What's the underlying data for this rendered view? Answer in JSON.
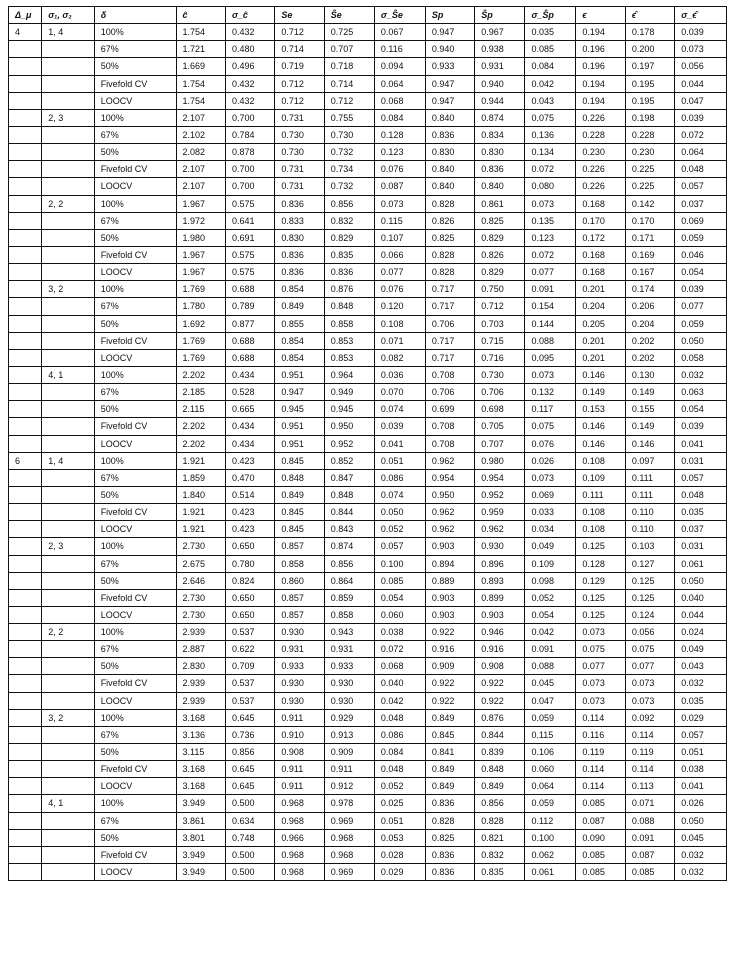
{
  "table": {
    "type": "table",
    "background_color": "#ffffff",
    "grid_color": "#111111",
    "font_family": "Arial",
    "font_size_pt": 7,
    "header_font_weight": "700",
    "columns": [
      {
        "label": "Δ_μ",
        "italic": true
      },
      {
        "label": "σ₁, σ₂",
        "italic": true
      },
      {
        "label": "δ",
        "italic": true
      },
      {
        "label": "ĉ",
        "italic": true
      },
      {
        "label": "σ_ĉ",
        "italic": true
      },
      {
        "label": "Se",
        "italic": true
      },
      {
        "label": "Ŝe",
        "italic": true,
        "hat": true
      },
      {
        "label": "σ_Ŝe",
        "italic": true
      },
      {
        "label": "Sp",
        "italic": true
      },
      {
        "label": "Ŝp",
        "italic": true,
        "hat": true
      },
      {
        "label": "σ_Ŝp",
        "italic": true
      },
      {
        "label": "ϵ",
        "italic": true
      },
      {
        "label": "ϵ̂",
        "italic": true
      },
      {
        "label": "σ_ϵ̂",
        "italic": true
      }
    ],
    "column_widths_pct": [
      4.3,
      6.8,
      10.6,
      6.4,
      6.4,
      6.4,
      6.5,
      6.6,
      6.4,
      6.5,
      6.6,
      6.4,
      6.4,
      6.7
    ],
    "rows": [
      [
        "4",
        "1, 4",
        "100%",
        "1.754",
        "0.432",
        "0.712",
        "0.725",
        "0.067",
        "0.947",
        "0.967",
        "0.035",
        "0.194",
        "0.178",
        "0.039"
      ],
      [
        "",
        "",
        "67%",
        "1.721",
        "0.480",
        "0.714",
        "0.707",
        "0.116",
        "0.940",
        "0.938",
        "0.085",
        "0.196",
        "0.200",
        "0.073"
      ],
      [
        "",
        "",
        "50%",
        "1.669",
        "0.496",
        "0.719",
        "0.718",
        "0.094",
        "0.933",
        "0.931",
        "0.084",
        "0.196",
        "0.197",
        "0.056"
      ],
      [
        "",
        "",
        "Fivefold CV",
        "1.754",
        "0.432",
        "0.712",
        "0.714",
        "0.064",
        "0.947",
        "0.940",
        "0.042",
        "0.194",
        "0.195",
        "0.044"
      ],
      [
        "",
        "",
        "LOOCV",
        "1.754",
        "0.432",
        "0.712",
        "0.712",
        "0.068",
        "0.947",
        "0.944",
        "0.043",
        "0.194",
        "0.195",
        "0.047"
      ],
      [
        "",
        "2, 3",
        "100%",
        "2.107",
        "0.700",
        "0.731",
        "0.755",
        "0.084",
        "0.840",
        "0.874",
        "0.075",
        "0.226",
        "0.198",
        "0.039"
      ],
      [
        "",
        "",
        "67%",
        "2.102",
        "0.784",
        "0.730",
        "0.730",
        "0.128",
        "0.836",
        "0.834",
        "0.136",
        "0.228",
        "0.228",
        "0.072"
      ],
      [
        "",
        "",
        "50%",
        "2.082",
        "0.878",
        "0.730",
        "0.732",
        "0.123",
        "0.830",
        "0.830",
        "0.134",
        "0.230",
        "0.230",
        "0.064"
      ],
      [
        "",
        "",
        "Fivefold CV",
        "2.107",
        "0.700",
        "0.731",
        "0.734",
        "0.076",
        "0.840",
        "0.836",
        "0.072",
        "0.226",
        "0.225",
        "0.048"
      ],
      [
        "",
        "",
        "LOOCV",
        "2.107",
        "0.700",
        "0.731",
        "0.732",
        "0.087",
        "0.840",
        "0.840",
        "0.080",
        "0.226",
        "0.225",
        "0.057"
      ],
      [
        "",
        "2, 2",
        "100%",
        "1.967",
        "0.575",
        "0.836",
        "0.856",
        "0.073",
        "0.828",
        "0.861",
        "0.073",
        "0.168",
        "0.142",
        "0.037"
      ],
      [
        "",
        "",
        "67%",
        "1.972",
        "0.641",
        "0.833",
        "0.832",
        "0.115",
        "0.826",
        "0.825",
        "0.135",
        "0.170",
        "0.170",
        "0.069"
      ],
      [
        "",
        "",
        "50%",
        "1.980",
        "0.691",
        "0.830",
        "0.829",
        "0.107",
        "0.825",
        "0.829",
        "0.123",
        "0.172",
        "0.171",
        "0.059"
      ],
      [
        "",
        "",
        "Fivefold CV",
        "1.967",
        "0.575",
        "0.836",
        "0.835",
        "0.066",
        "0.828",
        "0.826",
        "0.072",
        "0.168",
        "0.169",
        "0.046"
      ],
      [
        "",
        "",
        "LOOCV",
        "1.967",
        "0.575",
        "0.836",
        "0.836",
        "0.077",
        "0.828",
        "0.829",
        "0.077",
        "0.168",
        "0.167",
        "0.054"
      ],
      [
        "",
        "3, 2",
        "100%",
        "1.769",
        "0.688",
        "0.854",
        "0.876",
        "0.076",
        "0.717",
        "0.750",
        "0.091",
        "0.201",
        "0.174",
        "0.039"
      ],
      [
        "",
        "",
        "67%",
        "1.780",
        "0.789",
        "0.849",
        "0.848",
        "0.120",
        "0.717",
        "0.712",
        "0.154",
        "0.204",
        "0.206",
        "0.077"
      ],
      [
        "",
        "",
        "50%",
        "1.692",
        "0.877",
        "0.855",
        "0.858",
        "0.108",
        "0.706",
        "0.703",
        "0.144",
        "0.205",
        "0.204",
        "0.059"
      ],
      [
        "",
        "",
        "Fivefold CV",
        "1.769",
        "0.688",
        "0.854",
        "0.853",
        "0.071",
        "0.717",
        "0.715",
        "0.088",
        "0.201",
        "0.202",
        "0.050"
      ],
      [
        "",
        "",
        "LOOCV",
        "1.769",
        "0.688",
        "0.854",
        "0.853",
        "0.082",
        "0.717",
        "0.716",
        "0.095",
        "0.201",
        "0.202",
        "0.058"
      ],
      [
        "",
        "4, 1",
        "100%",
        "2.202",
        "0.434",
        "0.951",
        "0.964",
        "0.036",
        "0.708",
        "0.730",
        "0.073",
        "0.146",
        "0.130",
        "0.032"
      ],
      [
        "",
        "",
        "67%",
        "2.185",
        "0.528",
        "0.947",
        "0.949",
        "0.070",
        "0.706",
        "0.706",
        "0.132",
        "0.149",
        "0.149",
        "0.063"
      ],
      [
        "",
        "",
        "50%",
        "2.115",
        "0.665",
        "0.945",
        "0.945",
        "0.074",
        "0.699",
        "0.698",
        "0.117",
        "0.153",
        "0.155",
        "0.054"
      ],
      [
        "",
        "",
        "Fivefold CV",
        "2.202",
        "0.434",
        "0.951",
        "0.950",
        "0.039",
        "0.708",
        "0.705",
        "0.075",
        "0.146",
        "0.149",
        "0.039"
      ],
      [
        "",
        "",
        "LOOCV",
        "2.202",
        "0.434",
        "0.951",
        "0.952",
        "0.041",
        "0.708",
        "0.707",
        "0.076",
        "0.146",
        "0.146",
        "0.041"
      ],
      [
        "6",
        "1, 4",
        "100%",
        "1.921",
        "0.423",
        "0.845",
        "0.852",
        "0.051",
        "0.962",
        "0.980",
        "0.026",
        "0.108",
        "0.097",
        "0.031"
      ],
      [
        "",
        "",
        "67%",
        "1.859",
        "0.470",
        "0.848",
        "0.847",
        "0.086",
        "0.954",
        "0.954",
        "0.073",
        "0.109",
        "0.111",
        "0.057"
      ],
      [
        "",
        "",
        "50%",
        "1.840",
        "0.514",
        "0.849",
        "0.848",
        "0.074",
        "0.950",
        "0.952",
        "0.069",
        "0.111",
        "0.111",
        "0.048"
      ],
      [
        "",
        "",
        "Fivefold CV",
        "1.921",
        "0.423",
        "0.845",
        "0.844",
        "0.050",
        "0.962",
        "0.959",
        "0.033",
        "0.108",
        "0.110",
        "0.035"
      ],
      [
        "",
        "",
        "LOOCV",
        "1.921",
        "0.423",
        "0.845",
        "0.843",
        "0.052",
        "0.962",
        "0.962",
        "0.034",
        "0.108",
        "0.110",
        "0.037"
      ],
      [
        "",
        "2, 3",
        "100%",
        "2.730",
        "0.650",
        "0.857",
        "0.874",
        "0.057",
        "0.903",
        "0.930",
        "0.049",
        "0.125",
        "0.103",
        "0.031"
      ],
      [
        "",
        "",
        "67%",
        "2.675",
        "0.780",
        "0.858",
        "0.856",
        "0.100",
        "0.894",
        "0.896",
        "0.109",
        "0.128",
        "0.127",
        "0.061"
      ],
      [
        "",
        "",
        "50%",
        "2.646",
        "0.824",
        "0.860",
        "0.864",
        "0.085",
        "0.889",
        "0.893",
        "0.098",
        "0.129",
        "0.125",
        "0.050"
      ],
      [
        "",
        "",
        "Fivefold CV",
        "2.730",
        "0.650",
        "0.857",
        "0.859",
        "0.054",
        "0.903",
        "0.899",
        "0.052",
        "0.125",
        "0.125",
        "0.040"
      ],
      [
        "",
        "",
        "LOOCV",
        "2.730",
        "0.650",
        "0.857",
        "0.858",
        "0.060",
        "0.903",
        "0.903",
        "0.054",
        "0.125",
        "0.124",
        "0.044"
      ],
      [
        "",
        "2, 2",
        "100%",
        "2.939",
        "0.537",
        "0.930",
        "0.943",
        "0.038",
        "0.922",
        "0.946",
        "0.042",
        "0.073",
        "0.056",
        "0.024"
      ],
      [
        "",
        "",
        "67%",
        "2.887",
        "0.622",
        "0.931",
        "0.931",
        "0.072",
        "0.916",
        "0.916",
        "0.091",
        "0.075",
        "0.075",
        "0.049"
      ],
      [
        "",
        "",
        "50%",
        "2.830",
        "0.709",
        "0.933",
        "0.933",
        "0.068",
        "0.909",
        "0.908",
        "0.088",
        "0.077",
        "0.077",
        "0.043"
      ],
      [
        "",
        "",
        "Fivefold CV",
        "2.939",
        "0.537",
        "0.930",
        "0.930",
        "0.040",
        "0.922",
        "0.922",
        "0.045",
        "0.073",
        "0.073",
        "0.032"
      ],
      [
        "",
        "",
        "LOOCV",
        "2.939",
        "0.537",
        "0.930",
        "0.930",
        "0.042",
        "0.922",
        "0.922",
        "0.047",
        "0.073",
        "0.073",
        "0.035"
      ],
      [
        "",
        "3, 2",
        "100%",
        "3.168",
        "0.645",
        "0.911",
        "0.929",
        "0.048",
        "0.849",
        "0.876",
        "0.059",
        "0.114",
        "0.092",
        "0.029"
      ],
      [
        "",
        "",
        "67%",
        "3.136",
        "0.736",
        "0.910",
        "0.913",
        "0.086",
        "0.845",
        "0.844",
        "0.115",
        "0.116",
        "0.114",
        "0.057"
      ],
      [
        "",
        "",
        "50%",
        "3.115",
        "0.856",
        "0.908",
        "0.909",
        "0.084",
        "0.841",
        "0.839",
        "0.106",
        "0.119",
        "0.119",
        "0.051"
      ],
      [
        "",
        "",
        "Fivefold CV",
        "3.168",
        "0.645",
        "0.911",
        "0.911",
        "0.048",
        "0.849",
        "0.848",
        "0.060",
        "0.114",
        "0.114",
        "0.038"
      ],
      [
        "",
        "",
        "LOOCV",
        "3.168",
        "0.645",
        "0.911",
        "0.912",
        "0.052",
        "0.849",
        "0.849",
        "0.064",
        "0.114",
        "0.113",
        "0.041"
      ],
      [
        "",
        "4, 1",
        "100%",
        "3.949",
        "0.500",
        "0.968",
        "0.978",
        "0.025",
        "0.836",
        "0.856",
        "0.059",
        "0.085",
        "0.071",
        "0.026"
      ],
      [
        "",
        "",
        "67%",
        "3.861",
        "0.634",
        "0.968",
        "0.969",
        "0.051",
        "0.828",
        "0.828",
        "0.112",
        "0.087",
        "0.088",
        "0.050"
      ],
      [
        "",
        "",
        "50%",
        "3.801",
        "0.748",
        "0.966",
        "0.968",
        "0.053",
        "0.825",
        "0.821",
        "0.100",
        "0.090",
        "0.091",
        "0.045"
      ],
      [
        "",
        "",
        "Fivefold CV",
        "3.949",
        "0.500",
        "0.968",
        "0.968",
        "0.028",
        "0.836",
        "0.832",
        "0.062",
        "0.085",
        "0.087",
        "0.032"
      ],
      [
        "",
        "",
        "LOOCV",
        "3.949",
        "0.500",
        "0.968",
        "0.969",
        "0.029",
        "0.836",
        "0.835",
        "0.061",
        "0.085",
        "0.085",
        "0.032"
      ]
    ]
  }
}
